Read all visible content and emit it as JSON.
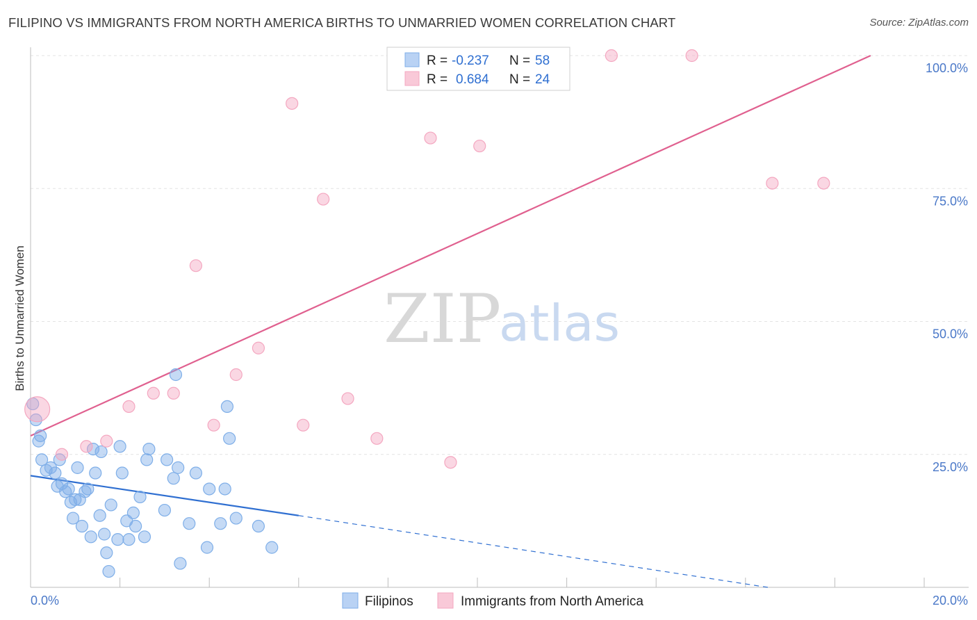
{
  "header": {
    "title": "FILIPINO VS IMMIGRANTS FROM NORTH AMERICA BIRTHS TO UNMARRIED WOMEN CORRELATION CHART",
    "source": "Source: ZipAtlas.com"
  },
  "watermark": {
    "zip": "ZIP",
    "atlas": "atlas"
  },
  "chart_data": {
    "type": "scatter",
    "ylabel": "Births to Unmarried Women",
    "xlim": [
      0,
      20
    ],
    "ylim": [
      0,
      105
    ],
    "x_ticks": [
      "0.0%",
      "20.0%"
    ],
    "y_ticks": [
      {
        "value": 25,
        "label": "25.0%"
      },
      {
        "value": 50,
        "label": "50.0%"
      },
      {
        "value": 75,
        "label": "75.0%"
      },
      {
        "value": 100,
        "label": "100.0%"
      }
    ],
    "grid": true,
    "legend": {
      "placement": "top-center",
      "rows": [
        {
          "r_label": "R =",
          "r_value": "-0.237",
          "n_label": "N =",
          "n_value": "58"
        },
        {
          "r_label": "R =",
          "r_value": "0.684",
          "n_label": "N =",
          "n_value": "24"
        }
      ]
    },
    "series": [
      {
        "name": "Filipinos",
        "color": "#7eaee8",
        "line_color": "#2f6fd1",
        "trend": {
          "x0": 0,
          "y0": 21,
          "x1": 6,
          "y1": 13.5,
          "dash_to_x": 16.5,
          "dash_to_y": 0
        },
        "points": [
          [
            0.05,
            34.5
          ],
          [
            0.12,
            31.5
          ],
          [
            0.18,
            27.5
          ],
          [
            0.22,
            28.5
          ],
          [
            0.25,
            24
          ],
          [
            0.35,
            22
          ],
          [
            0.45,
            22.5
          ],
          [
            0.55,
            21.5
          ],
          [
            0.6,
            19
          ],
          [
            0.65,
            24
          ],
          [
            0.7,
            19.5
          ],
          [
            0.78,
            18
          ],
          [
            0.85,
            18.5
          ],
          [
            0.9,
            16
          ],
          [
            0.95,
            13
          ],
          [
            1.0,
            16.5
          ],
          [
            1.05,
            22.5
          ],
          [
            1.1,
            16.5
          ],
          [
            1.15,
            11.5
          ],
          [
            1.22,
            18
          ],
          [
            1.28,
            18.5
          ],
          [
            1.35,
            9.5
          ],
          [
            1.4,
            26
          ],
          [
            1.45,
            21.5
          ],
          [
            1.55,
            13.5
          ],
          [
            1.58,
            25.5
          ],
          [
            1.65,
            10
          ],
          [
            1.7,
            6.5
          ],
          [
            1.75,
            3
          ],
          [
            1.8,
            15.5
          ],
          [
            1.95,
            9
          ],
          [
            2.0,
            26.5
          ],
          [
            2.05,
            21.5
          ],
          [
            2.15,
            12.5
          ],
          [
            2.2,
            9
          ],
          [
            2.3,
            14
          ],
          [
            2.35,
            11.5
          ],
          [
            2.45,
            17
          ],
          [
            2.55,
            9.5
          ],
          [
            2.6,
            24
          ],
          [
            2.65,
            26
          ],
          [
            3.0,
            14.5
          ],
          [
            3.05,
            24
          ],
          [
            3.2,
            20.5
          ],
          [
            3.25,
            40
          ],
          [
            3.3,
            22.5
          ],
          [
            3.35,
            4.5
          ],
          [
            3.55,
            12
          ],
          [
            3.7,
            21.5
          ],
          [
            3.95,
            7.5
          ],
          [
            4.0,
            18.5
          ],
          [
            4.25,
            12
          ],
          [
            4.35,
            18.5
          ],
          [
            4.4,
            34
          ],
          [
            4.45,
            28
          ],
          [
            4.6,
            13
          ],
          [
            5.1,
            11.5
          ],
          [
            5.4,
            7.5
          ]
        ]
      },
      {
        "name": "Immigrants from North America",
        "color": "#f4a7c0",
        "line_color": "#e0608f",
        "trend": {
          "x0": 0,
          "y0": 28.5,
          "x1": 18.8,
          "y1": 100
        },
        "points": [
          [
            0.15,
            33.5
          ],
          [
            0.7,
            25
          ],
          [
            1.25,
            26.5
          ],
          [
            1.7,
            27.5
          ],
          [
            2.2,
            34
          ],
          [
            2.75,
            36.5
          ],
          [
            3.2,
            36.5
          ],
          [
            3.7,
            60.5
          ],
          [
            4.1,
            30.5
          ],
          [
            4.6,
            40
          ],
          [
            5.1,
            45
          ],
          [
            5.85,
            91
          ],
          [
            6.1,
            30.5
          ],
          [
            6.55,
            73
          ],
          [
            7.1,
            35.5
          ],
          [
            7.75,
            28
          ],
          [
            8.95,
            84.5
          ],
          [
            9.4,
            23.5
          ],
          [
            10.05,
            83
          ],
          [
            13.0,
            100
          ],
          [
            14.8,
            100
          ],
          [
            16.6,
            76
          ],
          [
            17.75,
            76
          ],
          [
            9.8,
            100
          ]
        ]
      }
    ]
  }
}
